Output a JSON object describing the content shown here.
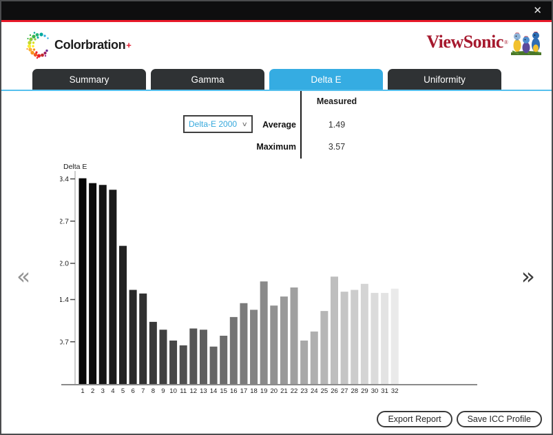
{
  "window": {
    "close_icon": "✕"
  },
  "header": {
    "colorbration": {
      "text": "Colorbration",
      "plus": "+"
    },
    "viewsonic": {
      "text": "ViewSonic",
      "reg": "®"
    }
  },
  "tabs": [
    {
      "label": "Summary",
      "active": false
    },
    {
      "label": "Gamma",
      "active": false
    },
    {
      "label": "Delta E",
      "active": true
    },
    {
      "label": "Uniformity",
      "active": false
    }
  ],
  "stats": {
    "dropdown_value": "Delta-E 2000",
    "dropdown_caret": "∨",
    "column_header": "Measured",
    "rows": [
      {
        "label": "Average",
        "value": "1.49"
      },
      {
        "label": "Maximum",
        "value": "3.57"
      }
    ]
  },
  "pager": {
    "prev_icon": "«",
    "next_icon": "»"
  },
  "footer": {
    "export_label": "Export Report",
    "save_label": "Save ICC Profile"
  },
  "colors": {
    "accent_blue": "#35ace2",
    "tab_underline_blue": "#56c0ee",
    "brand_red": "#a6192e",
    "titlebar_red_line": "#e8192a",
    "bar_color_start": "#050505",
    "bar_color_end": "#eaeaea"
  },
  "chart_data": {
    "type": "bar",
    "title": "Delta E",
    "ylabel": "Delta E",
    "xlabel": "",
    "grid": false,
    "legend": "none",
    "categories": [
      "1",
      "2",
      "3",
      "4",
      "5",
      "6",
      "7",
      "8",
      "9",
      "10",
      "11",
      "12",
      "13",
      "14",
      "15",
      "16",
      "17",
      "18",
      "19",
      "20",
      "21",
      "22",
      "23",
      "24",
      "25",
      "26",
      "27",
      "28",
      "29",
      "30",
      "31",
      "32"
    ],
    "values": [
      3.41,
      3.33,
      3.3,
      3.22,
      2.29,
      1.56,
      1.5,
      1.03,
      0.9,
      0.72,
      0.64,
      0.92,
      0.9,
      0.62,
      0.8,
      1.11,
      1.34,
      1.23,
      1.7,
      1.3,
      1.45,
      1.6,
      0.72,
      0.87,
      1.21,
      1.78,
      1.53,
      1.56,
      1.66,
      1.51,
      1.51,
      1.58
    ],
    "yticks": [
      3.4,
      2.7,
      2.0,
      1.4,
      0.7
    ],
    "ylim": [
      0,
      3.55
    ]
  }
}
